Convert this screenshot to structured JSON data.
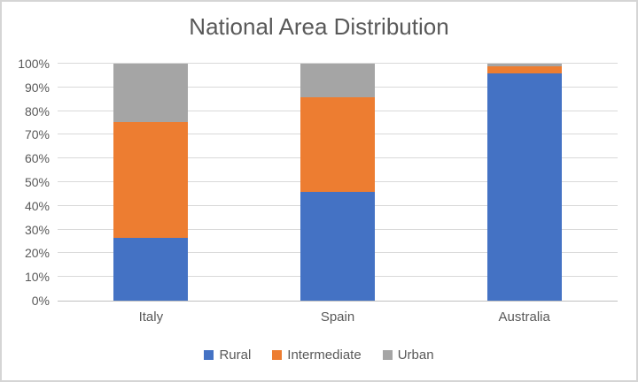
{
  "window": {
    "background": "#ffffff",
    "frame_border_color": "#d5d5d5"
  },
  "chart_data": {
    "type": "bar",
    "subtype": "stacked-100-percent-column",
    "title": "National Area Distribution",
    "categories": [
      "Italy",
      "Spain",
      "Australia"
    ],
    "series": [
      {
        "name": "Rural",
        "color": "#4472C4",
        "values": [
          26.5,
          46,
          96
        ]
      },
      {
        "name": "Intermediate",
        "color": "#ED7D31",
        "values": [
          49,
          40,
          3
        ]
      },
      {
        "name": "Urban",
        "color": "#A5A5A5",
        "values": [
          24.5,
          14,
          1
        ]
      }
    ],
    "y_axis": {
      "min": 0,
      "max": 100,
      "tick_step": 10,
      "ticks": [
        "0%",
        "10%",
        "20%",
        "30%",
        "40%",
        "50%",
        "60%",
        "70%",
        "80%",
        "90%",
        "100%"
      ]
    },
    "x_axis": {
      "labels": [
        "Italy",
        "Spain",
        "Australia"
      ]
    },
    "legend": {
      "position": "bottom",
      "entries": [
        "Rural",
        "Intermediate",
        "Urban"
      ]
    },
    "grid": true,
    "colors": {
      "gridline": "#d9d9d9",
      "axis_line": "#bfbfbf",
      "text": "#595959"
    }
  }
}
